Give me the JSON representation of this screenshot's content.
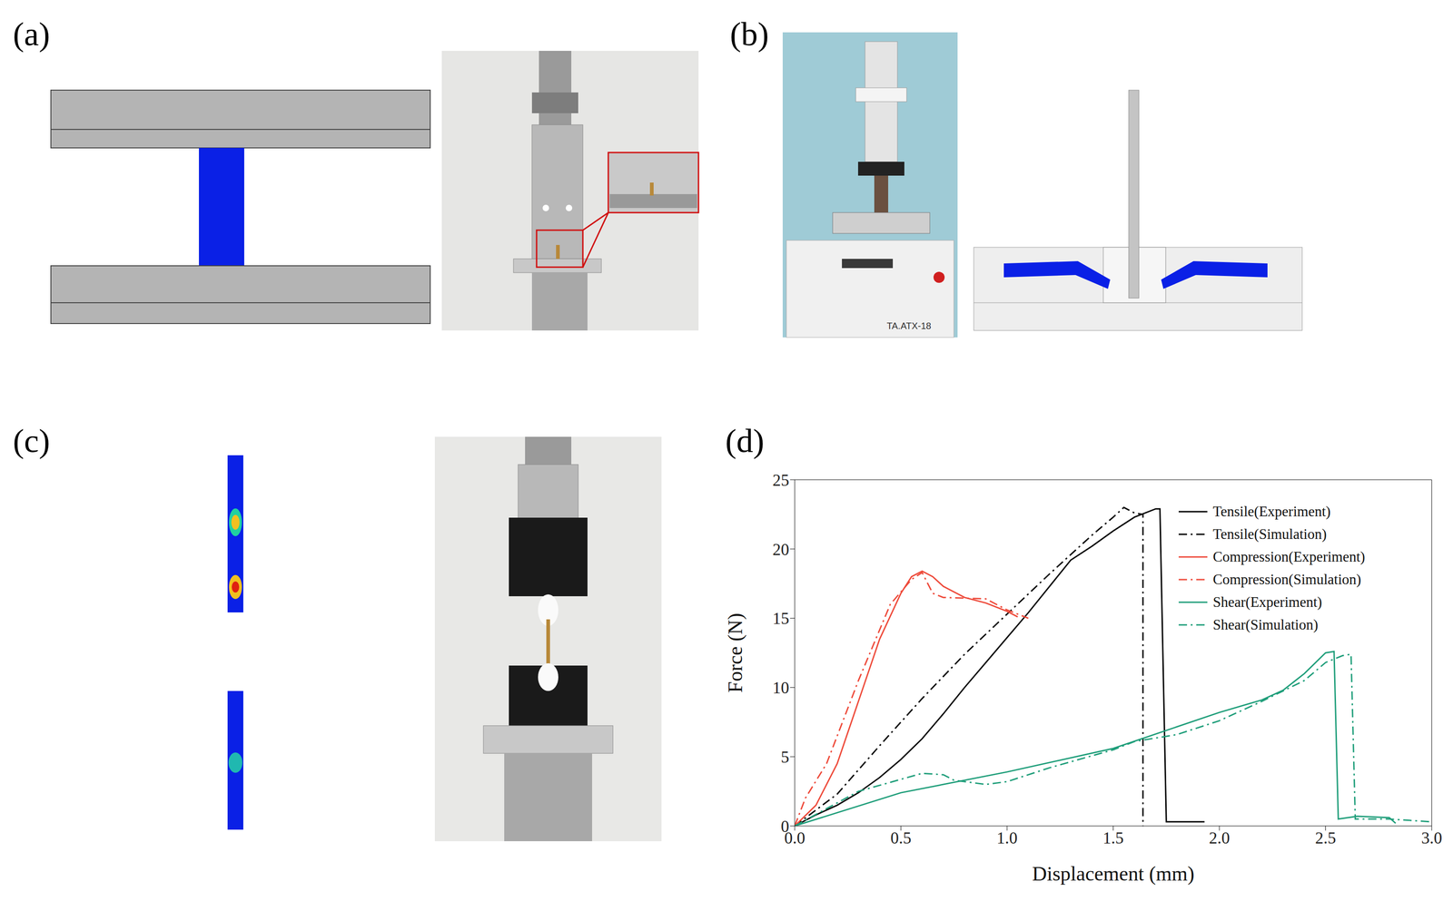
{
  "panels": {
    "a": {
      "label": "(a)"
    },
    "b": {
      "label": "(b)",
      "device_label": "TA.ATX-18"
    },
    "c": {
      "label": "(c)"
    }
  },
  "chart_data": {
    "label": "(d)",
    "type": "line",
    "x_label": "Displacement (mm)",
    "y_label": "Force (N)",
    "xlim": [
      0,
      3
    ],
    "ylim": [
      0,
      25
    ],
    "xticks": [
      {
        "value": 0,
        "label": "0.0"
      },
      {
        "value": 0.5,
        "label": "0.5"
      },
      {
        "value": 1,
        "label": "1.0"
      },
      {
        "value": 1.5,
        "label": "1.5"
      },
      {
        "value": 2,
        "label": "2.0"
      },
      {
        "value": 2.5,
        "label": "2.5"
      },
      {
        "value": 3,
        "label": "3.0"
      }
    ],
    "yticks": [
      0,
      5,
      10,
      15,
      20,
      25
    ],
    "grid": false,
    "legend": "upper right",
    "series": [
      {
        "name": "Tensile(Experiment)",
        "color": "#000000",
        "line_style": "solid",
        "x": [
          0,
          0.1,
          0.2,
          0.3,
          0.4,
          0.5,
          0.6,
          0.7,
          0.8,
          0.9,
          1.0,
          1.1,
          1.2,
          1.3,
          1.4,
          1.5,
          1.6,
          1.7,
          1.72,
          1.75,
          1.93
        ],
        "values": [
          0,
          0.8,
          1.5,
          2.4,
          3.5,
          4.8,
          6.3,
          8.1,
          10.0,
          11.8,
          13.6,
          15.4,
          17.3,
          19.2,
          20.2,
          21.3,
          22.3,
          22.9,
          22.9,
          0.3,
          0.3
        ]
      },
      {
        "name": "Tensile(Simulation)",
        "color": "#000000",
        "line_style": "dashdot",
        "x": [
          0,
          0.2,
          0.4,
          0.6,
          0.8,
          1.0,
          1.2,
          1.4,
          1.5,
          1.55,
          1.6,
          1.64,
          1.64
        ],
        "values": [
          0,
          2.3,
          5.8,
          9.2,
          12.4,
          15.3,
          18.2,
          21.0,
          22.3,
          23.0,
          22.6,
          22.5,
          0
        ]
      },
      {
        "name": "Compression(Experiment)",
        "color": "#ee4a3a",
        "line_style": "solid",
        "x": [
          0,
          0.1,
          0.2,
          0.3,
          0.4,
          0.5,
          0.55,
          0.6,
          0.65,
          0.7,
          0.8,
          0.9,
          1.0,
          1.05
        ],
        "values": [
          0,
          1.5,
          4.5,
          9.0,
          13.5,
          16.8,
          18.0,
          18.4,
          18.0,
          17.3,
          16.5,
          16.1,
          15.5,
          15.1
        ]
      },
      {
        "name": "Compression(Simulation)",
        "color": "#ee4a3a",
        "line_style": "dashdot",
        "x": [
          0,
          0.05,
          0.15,
          0.3,
          0.45,
          0.55,
          0.6,
          0.65,
          0.7,
          0.9,
          1.0,
          1.1
        ],
        "values": [
          0,
          2.0,
          4.5,
          10.5,
          16.0,
          17.8,
          18.3,
          16.8,
          16.5,
          16.4,
          15.6,
          15.0
        ]
      },
      {
        "name": "Shear(Experiment)",
        "color": "#1f9e7a",
        "line_style": "solid",
        "x": [
          0,
          0.5,
          1.0,
          1.5,
          2.0,
          2.2,
          2.3,
          2.4,
          2.5,
          2.54,
          2.56,
          2.65,
          2.8,
          2.83
        ],
        "values": [
          0,
          2.4,
          3.9,
          5.6,
          8.2,
          9.1,
          9.8,
          11.0,
          12.5,
          12.6,
          0.5,
          0.7,
          0.6,
          0.2
        ]
      },
      {
        "name": "Shear(Simulation)",
        "color": "#1f9e7a",
        "line_style": "dashdot",
        "x": [
          0,
          0.3,
          0.6,
          0.7,
          0.75,
          0.9,
          1.0,
          1.2,
          1.5,
          1.6,
          1.8,
          2.0,
          2.2,
          2.4,
          2.5,
          2.58,
          2.62,
          2.64,
          2.8,
          3.0
        ],
        "values": [
          0,
          2.5,
          3.8,
          3.7,
          3.3,
          3.0,
          3.2,
          4.2,
          5.5,
          6.1,
          6.6,
          7.6,
          9.0,
          10.5,
          11.8,
          12.3,
          12.4,
          0.5,
          0.5,
          0.3
        ]
      }
    ]
  }
}
